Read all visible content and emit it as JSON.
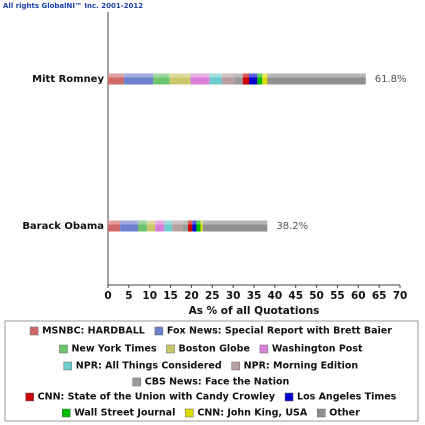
{
  "chart_data": {
    "type": "hbar_stacked",
    "copyright": "All rights GlobalNI™ Inc. 2001-2012",
    "x_label": "As % of all Quotations",
    "categories": [
      "Mitt Romney",
      "Barack Obama"
    ],
    "series": [
      {
        "name": "MSNBC: HARDBALL",
        "color": "#d06a6a",
        "values": [
          3.8,
          2.9
        ]
      },
      {
        "name": "Fox News: Special Report with Brett Baier",
        "color": "#6f7fd0",
        "values": [
          7,
          4.3
        ]
      },
      {
        "name": "New York Times",
        "color": "#6cc46c",
        "values": [
          4,
          2.2
        ]
      },
      {
        "name": "Boston Globe",
        "color": "#c8c868",
        "values": [
          5,
          1.9
        ]
      },
      {
        "name": "Washington Post",
        "color": "#d880d8",
        "values": [
          4.5,
          2.2
        ]
      },
      {
        "name": "NPR: All Things Considered",
        "color": "#6ccccc",
        "values": [
          3,
          1.9
        ]
      },
      {
        "name": "NPR: Morning Edition",
        "color": "#b8a0a0",
        "values": [
          3,
          2.4
        ]
      },
      {
        "name": "CBS News: Face the Nation",
        "color": "#9a9a9a",
        "values": [
          2,
          1.4
        ]
      },
      {
        "name": "CNN: State of the Union with Candy Crowley",
        "color": "#cc0000",
        "values": [
          1.5,
          1
        ]
      },
      {
        "name": "Los Angeles Times",
        "color": "#0000cc",
        "values": [
          2,
          1
        ]
      },
      {
        "name": "Wall Street Journal",
        "color": "#00bb00",
        "values": [
          1.2,
          1
        ]
      },
      {
        "name": "CNN: John King, USA",
        "color": "#dddd00",
        "values": [
          1.2,
          0.5
        ]
      },
      {
        "name": "Other",
        "color": "#909090",
        "values": [
          23.6,
          15.5
        ]
      }
    ],
    "totals": [
      61.8,
      38.2
    ],
    "total_labels": [
      "61.8%",
      "38.2%"
    ],
    "xlim": [
      0,
      70
    ],
    "xticks": [
      0,
      5,
      10,
      15,
      20,
      25,
      30,
      35,
      40,
      45,
      50,
      55,
      60,
      65,
      70
    ],
    "grid": false
  }
}
